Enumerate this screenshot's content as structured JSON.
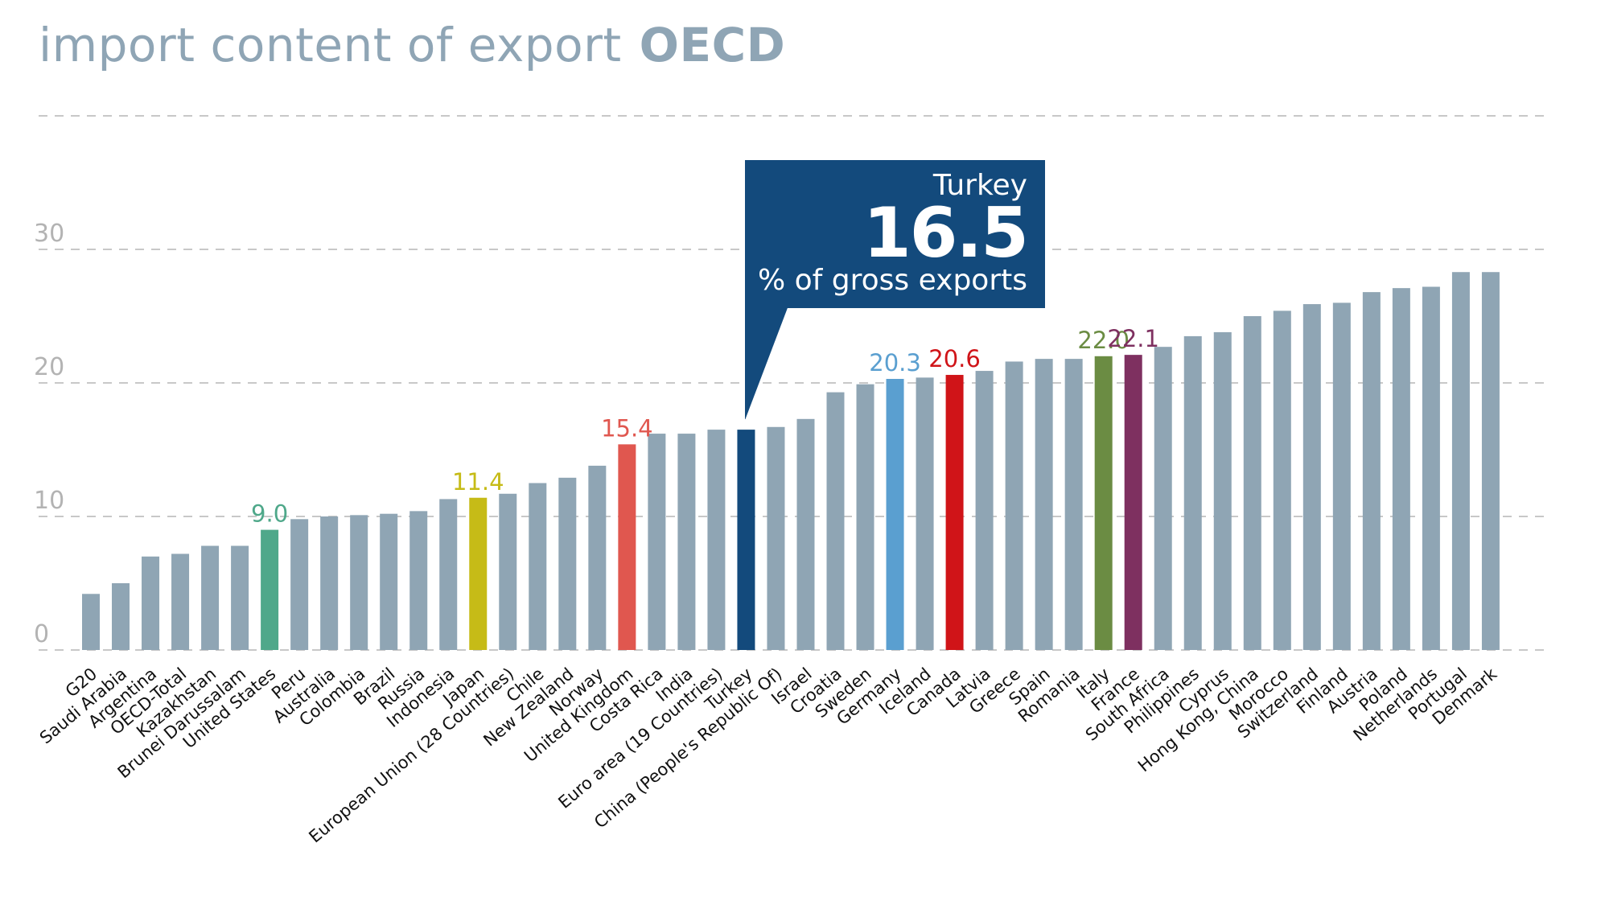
{
  "header": {
    "title": "import content of export",
    "source": "OECD"
  },
  "callout": {
    "country": "Turkey",
    "value": "16.5",
    "unit": "% of gross exports",
    "color": "#134a7c"
  },
  "chart_data": {
    "type": "bar",
    "title": "import content of export OECD",
    "xlabel": "",
    "ylabel": "% of gross exports",
    "ylim": [
      0,
      40
    ],
    "yticks": [
      0,
      10,
      20,
      30
    ],
    "grid": true,
    "default_color": "#8fa5b4",
    "label_color": "#111111",
    "categories": [
      "G20",
      "Saudi Arabia",
      "Argentina",
      "OECD-Total",
      "Kazakhstan",
      "Brunei Darussalam",
      "United States",
      "Peru",
      "Australia",
      "Colombia",
      "Brazil",
      "Russia",
      "Indonesia",
      "Japan",
      "European Union (28 Countries)",
      "Chile",
      "New Zealand",
      "Norway",
      "United Kingdom",
      "Costa Rica",
      "India",
      "Euro area (19 Countries)",
      "Turkey",
      "China (People's Republic Of)",
      "Israel",
      "Croatia",
      "Sweden",
      "Germany",
      "Iceland",
      "Canada",
      "Latvia",
      "Greece",
      "Spain",
      "Romania",
      "Italy",
      "France",
      "South Africa",
      "Philippines",
      "Cyprus",
      "Hong Kong, China",
      "Morocco",
      "Switzerland",
      "Finland",
      "Austria",
      "Poland",
      "Netherlands",
      "Portugal",
      "Denmark"
    ],
    "values": [
      4.2,
      5.0,
      7.0,
      7.2,
      7.8,
      7.8,
      9.0,
      9.8,
      10.0,
      10.1,
      10.2,
      10.4,
      11.3,
      11.4,
      11.7,
      12.5,
      12.9,
      13.8,
      15.4,
      16.2,
      16.2,
      16.5,
      16.5,
      16.7,
      17.3,
      19.3,
      19.9,
      20.3,
      20.4,
      20.6,
      20.9,
      21.6,
      21.8,
      21.8,
      22.0,
      22.1,
      22.7,
      23.5,
      23.8,
      25.0,
      25.4,
      25.9,
      26.0,
      26.8,
      27.1,
      27.2,
      28.3,
      28.3
    ],
    "highlights": [
      {
        "category": "United States",
        "value_label": "9.0",
        "color": "#4fa88a"
      },
      {
        "category": "Japan",
        "value_label": "11.4",
        "color": "#c6bb17"
      },
      {
        "category": "United Kingdom",
        "value_label": "15.4",
        "color": "#e0574f"
      },
      {
        "category": "Turkey",
        "value_label": "",
        "color": "#134a7c"
      },
      {
        "category": "Germany",
        "value_label": "20.3",
        "color": "#5a9fd0"
      },
      {
        "category": "Canada",
        "value_label": "20.6",
        "color": "#d01418"
      },
      {
        "category": "Italy",
        "value_label": "22.0",
        "color": "#6b8c43"
      },
      {
        "category": "France",
        "value_label": "22.1",
        "color": "#7e3060"
      }
    ]
  }
}
